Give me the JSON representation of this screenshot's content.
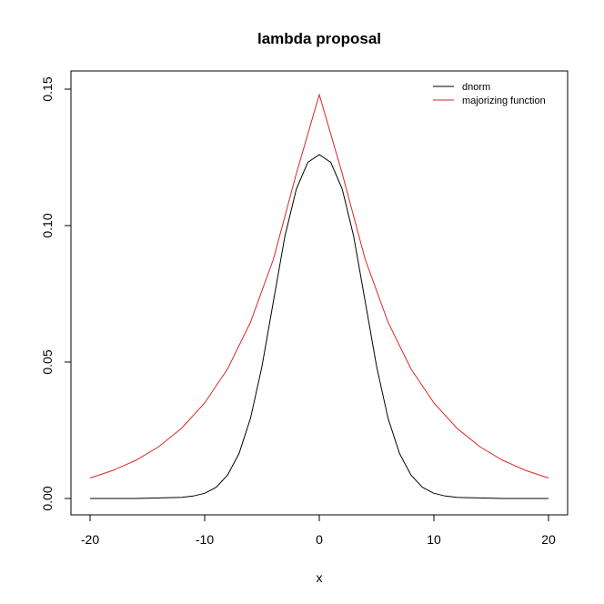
{
  "chart_data": {
    "type": "line",
    "title": "lambda proposal",
    "xlabel": "x",
    "ylabel": "",
    "xlim": [
      -20,
      20
    ],
    "ylim": [
      0,
      0.15
    ],
    "xticks": [
      "-20",
      "-10",
      "0",
      "10",
      "20"
    ],
    "xtick_values": [
      -20,
      -10,
      0,
      10,
      20
    ],
    "yticks": [
      "0.00",
      "0.05",
      "0.10",
      "0.15"
    ],
    "ytick_values": [
      0,
      0.05,
      0.1,
      0.15
    ],
    "grid": false,
    "legend_position": "top-right",
    "series": [
      {
        "name": "dnorm",
        "color": "#000000",
        "x": [
          -20,
          -18,
          -16,
          -14,
          -12,
          -11,
          -10,
          -9,
          -8,
          -7,
          -6,
          -5,
          -4,
          -3,
          -2,
          -1,
          0,
          1,
          2,
          3,
          4,
          5,
          6,
          7,
          8,
          9,
          10,
          11,
          12,
          14,
          16,
          18,
          20
        ],
        "y": [
          0.0,
          0.0,
          0.0,
          0.0002,
          0.0004,
          0.0009,
          0.0019,
          0.0041,
          0.0086,
          0.0165,
          0.0294,
          0.0484,
          0.0723,
          0.0961,
          0.1134,
          0.1232,
          0.126,
          0.1232,
          0.1134,
          0.0961,
          0.0723,
          0.0484,
          0.0294,
          0.0165,
          0.0086,
          0.0041,
          0.0019,
          0.0009,
          0.0004,
          0.0002,
          0.0,
          0.0,
          0.0
        ]
      },
      {
        "name": "majorizing function",
        "color": "#d62728",
        "x": [
          -20,
          -18,
          -16,
          -14,
          -12,
          -10,
          -8,
          -6,
          -4,
          -2,
          0,
          2,
          4,
          6,
          8,
          10,
          12,
          14,
          16,
          18,
          20
        ],
        "y": [
          0.0075,
          0.0103,
          0.014,
          0.019,
          0.0258,
          0.035,
          0.0475,
          0.0646,
          0.0877,
          0.1191,
          0.148,
          0.1191,
          0.0877,
          0.0646,
          0.0475,
          0.035,
          0.0258,
          0.019,
          0.014,
          0.0103,
          0.0075
        ]
      }
    ]
  }
}
